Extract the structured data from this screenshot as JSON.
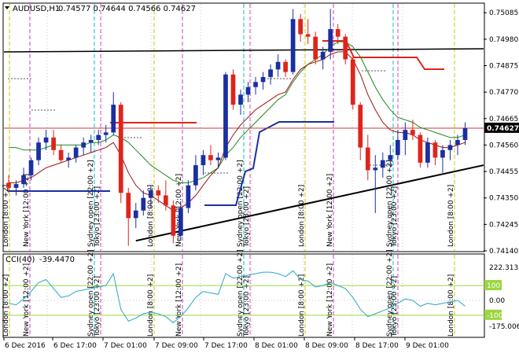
{
  "main_header": {
    "symbol": "AUDUSD,H1",
    "ohlc": "0.74577 0.74644 0.74566 0.74627"
  },
  "sub_header": {
    "indicator": "CCI(40)",
    "value": "-39.4470"
  },
  "price_axis": {
    "ticks": [
      "0.75085",
      "0.74980",
      "0.74875",
      "0.74770",
      "0.74665",
      "0.74560",
      "0.74455",
      "0.74350",
      "0.74245",
      "0.74140"
    ],
    "current_price": "0.74627"
  },
  "cci_axis": {
    "ticks": [
      "222.3133",
      "0.00",
      "-175.0066"
    ],
    "levels": [
      "100",
      "-100"
    ]
  },
  "time_axis": {
    "labels": [
      "6 Dec 2016",
      "6 Dec 17:00",
      "7 Dec 01:00",
      "7 Dec 09:00",
      "7 Dec 17:00",
      "8 Dec 01:00",
      "8 Dec 09:00",
      "8 Dec 17:00",
      "9 Dec 01:00"
    ]
  },
  "session_labels": [
    "London [8:00 +2]",
    "New York [12:00 +2]",
    "Sydney open [22:00 +2]",
    "Tokyo [23:00 +2]",
    "London [8:00 +2]",
    "New York [12:00 +2]",
    "Sydney open [22:00 +2]",
    "Tokyo [23:00 +2]",
    "London [8:00 +2]",
    "New York [12:00 +2]",
    "Sydney open [22:00 +2]",
    "Tokyo [23:00 +2]",
    "London [8:00 +2]"
  ],
  "colors": {
    "bull": "#1a2fa0",
    "bear": "#e0241b",
    "ma_fast": "#a01010",
    "ma_slow": "#1e8a1e",
    "cci_line": "#2aa6c8",
    "trendline": "#000000",
    "level_line": "#9bd63f",
    "price_line": "#cc3a3a",
    "london": "#c8c800",
    "newyork": "#c43cc4",
    "sydney": "#00bcbc",
    "tokyo": "#e03cc0"
  },
  "chart_data": {
    "type": "candlestick",
    "title": "AUDUSD,H1",
    "ylim": [
      0.7414,
      0.7512
    ],
    "candles_ohl c_note": "",
    "candles": [
      [
        0.7441,
        0.7444,
        0.7437,
        0.7439
      ],
      [
        0.7439,
        0.7442,
        0.7436,
        0.74405
      ],
      [
        0.74405,
        0.7447,
        0.7439,
        0.7444
      ],
      [
        0.7444,
        0.7451,
        0.7442,
        0.745
      ],
      [
        0.745,
        0.7459,
        0.7448,
        0.7457
      ],
      [
        0.7457,
        0.7462,
        0.7454,
        0.7459
      ],
      [
        0.7459,
        0.7462,
        0.7452,
        0.7454
      ],
      [
        0.7454,
        0.7456,
        0.7449,
        0.745
      ],
      [
        0.745,
        0.7453,
        0.7447,
        0.7451
      ],
      [
        0.7451,
        0.7456,
        0.7449,
        0.7455
      ],
      [
        0.7455,
        0.7459,
        0.7452,
        0.7457
      ],
      [
        0.7457,
        0.746,
        0.7453,
        0.7458
      ],
      [
        0.7458,
        0.7462,
        0.7456,
        0.746
      ],
      [
        0.746,
        0.7464,
        0.7457,
        0.7461
      ],
      [
        0.7461,
        0.7477,
        0.746,
        0.7472
      ],
      [
        0.7472,
        0.7473,
        0.7433,
        0.7437
      ],
      [
        0.7437,
        0.7439,
        0.7416,
        0.7427
      ],
      [
        0.7427,
        0.7433,
        0.7423,
        0.743
      ],
      [
        0.743,
        0.7438,
        0.7428,
        0.7435
      ],
      [
        0.7435,
        0.744,
        0.7431,
        0.7438
      ],
      [
        0.7438,
        0.744,
        0.7433,
        0.7436
      ],
      [
        0.7436,
        0.7442,
        0.743,
        0.7432
      ],
      [
        0.7432,
        0.7434,
        0.7417,
        0.742
      ],
      [
        0.742,
        0.7433,
        0.7418,
        0.7431
      ],
      [
        0.7431,
        0.7442,
        0.7429,
        0.744
      ],
      [
        0.744,
        0.7452,
        0.7438,
        0.7448
      ],
      [
        0.7448,
        0.7454,
        0.7444,
        0.7452
      ],
      [
        0.7452,
        0.7456,
        0.7448,
        0.745
      ],
      [
        0.745,
        0.7453,
        0.7447,
        0.7451
      ],
      [
        0.7451,
        0.7485,
        0.745,
        0.7484
      ],
      [
        0.7484,
        0.7486,
        0.747,
        0.7472
      ],
      [
        0.7472,
        0.7478,
        0.7468,
        0.7476
      ],
      [
        0.7476,
        0.7481,
        0.7473,
        0.7479
      ],
      [
        0.7479,
        0.7483,
        0.7476,
        0.7481
      ],
      [
        0.7481,
        0.7485,
        0.7478,
        0.7483
      ],
      [
        0.7483,
        0.7488,
        0.748,
        0.7486
      ],
      [
        0.7486,
        0.7492,
        0.7483,
        0.7489
      ],
      [
        0.7489,
        0.749,
        0.7483,
        0.7485
      ],
      [
        0.7485,
        0.751,
        0.7484,
        0.7506
      ],
      [
        0.7506,
        0.7508,
        0.7497,
        0.75
      ],
      [
        0.75,
        0.7506,
        0.7496,
        0.7499
      ],
      [
        0.7499,
        0.7501,
        0.7488,
        0.749
      ],
      [
        0.749,
        0.7495,
        0.7486,
        0.7493
      ],
      [
        0.7493,
        0.751,
        0.749,
        0.7502
      ],
      [
        0.7502,
        0.7504,
        0.7496,
        0.7499
      ],
      [
        0.7499,
        0.75,
        0.7488,
        0.749
      ],
      [
        0.749,
        0.7491,
        0.747,
        0.7472
      ],
      [
        0.7472,
        0.7473,
        0.745,
        0.7455
      ],
      [
        0.7455,
        0.746,
        0.7442,
        0.7446
      ],
      [
        0.7446,
        0.7452,
        0.7429,
        0.7447
      ],
      [
        0.7447,
        0.7453,
        0.7443,
        0.745
      ],
      [
        0.745,
        0.7456,
        0.7447,
        0.7452
      ],
      [
        0.7452,
        0.7462,
        0.745,
        0.7458
      ],
      [
        0.7458,
        0.7465,
        0.7452,
        0.7462
      ],
      [
        0.7462,
        0.7466,
        0.7458,
        0.746
      ],
      [
        0.746,
        0.7461,
        0.7447,
        0.7449
      ],
      [
        0.7449,
        0.7459,
        0.7447,
        0.7457
      ],
      [
        0.7457,
        0.7458,
        0.7448,
        0.7451
      ],
      [
        0.7451,
        0.7456,
        0.7445,
        0.7454
      ],
      [
        0.7454,
        0.7458,
        0.745,
        0.7456
      ],
      [
        0.7456,
        0.746,
        0.7452,
        0.7458
      ],
      [
        0.7458,
        0.7465,
        0.7456,
        0.74627
      ]
    ],
    "ma_fast": [
      0.7441,
      0.7441,
      0.7442,
      0.7443,
      0.7445,
      0.7447,
      0.7448,
      0.7449,
      0.745,
      0.7451,
      0.7452,
      0.7453,
      0.7454,
      0.7455,
      0.7457,
      0.7452,
      0.7445,
      0.744,
      0.7437,
      0.7436,
      0.7434,
      0.7432,
      0.743,
      0.7431,
      0.7433,
      0.7436,
      0.744,
      0.7444,
      0.7447,
      0.7455,
      0.746,
      0.7464,
      0.7467,
      0.747,
      0.7472,
      0.7474,
      0.7476,
      0.7477,
      0.7482,
      0.7486,
      0.7488,
      0.7489,
      0.749,
      0.7492,
      0.7493,
      0.7493,
      0.749,
      0.7484,
      0.7476,
      0.747,
      0.7465,
      0.7462,
      0.7461,
      0.7461,
      0.746,
      0.7458,
      0.7457,
      0.7456,
      0.7455,
      0.7455,
      0.7456,
      0.7457
    ],
    "ma_slow": [
      0.7455,
      0.7455,
      0.7454,
      0.7454,
      0.7454,
      0.7455,
      0.7456,
      0.7456,
      0.7456,
      0.7456,
      0.7456,
      0.7457,
      0.7457,
      0.7458,
      0.746,
      0.7459,
      0.7457,
      0.7454,
      0.7451,
      0.7448,
      0.7446,
      0.7444,
      0.7442,
      0.7441,
      0.7441,
      0.7442,
      0.7443,
      0.7445,
      0.7447,
      0.7452,
      0.7455,
      0.7459,
      0.7462,
      0.7465,
      0.7468,
      0.7471,
      0.7474,
      0.7476,
      0.7481,
      0.7485,
      0.7488,
      0.749,
      0.7492,
      0.7495,
      0.7497,
      0.7497,
      0.7495,
      0.7491,
      0.7485,
      0.7479,
      0.7474,
      0.747,
      0.7467,
      0.7466,
      0.7465,
      0.7463,
      0.7462,
      0.7461,
      0.746,
      0.7459,
      0.7459,
      0.746
    ],
    "cci": [
      -20,
      -30,
      10,
      60,
      120,
      140,
      80,
      20,
      30,
      60,
      70,
      80,
      90,
      100,
      180,
      -60,
      -140,
      -120,
      -90,
      -80,
      -90,
      -110,
      -150,
      -110,
      -50,
      20,
      60,
      50,
      40,
      180,
      150,
      160,
      170,
      180,
      190,
      190,
      180,
      160,
      200,
      140,
      130,
      90,
      100,
      120,
      100,
      80,
      20,
      -60,
      -110,
      -90,
      -70,
      -50,
      -20,
      10,
      0,
      -40,
      -20,
      -30,
      -20,
      -10,
      0,
      -39
    ]
  }
}
